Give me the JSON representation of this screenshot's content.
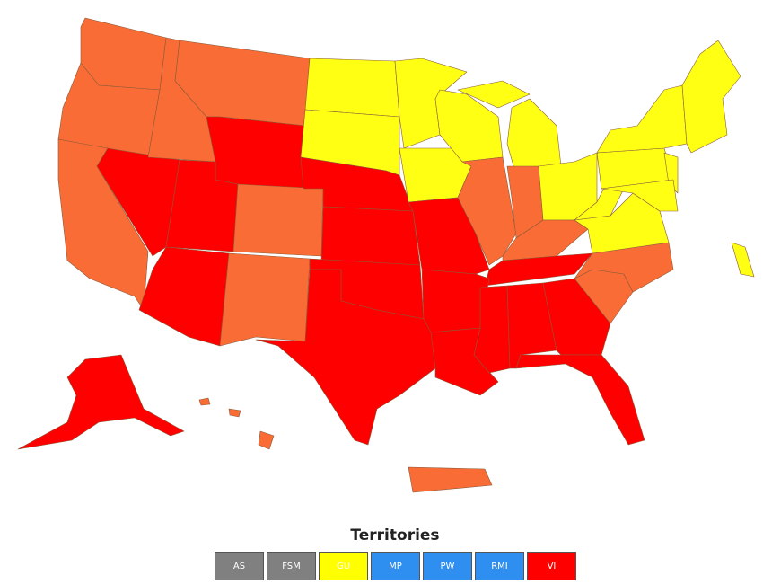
{
  "legend": {
    "title": "Territories",
    "items": [
      {
        "label": "AS",
        "color": "#808080"
      },
      {
        "label": "FSM",
        "color": "#808080"
      },
      {
        "label": "GU",
        "color": "#ffff00"
      },
      {
        "label": "MP",
        "color": "#2f8ff0"
      },
      {
        "label": "PW",
        "color": "#2f8ff0"
      },
      {
        "label": "RMI",
        "color": "#2f8ff0"
      },
      {
        "label": "VI",
        "color": "#ff0000"
      }
    ]
  }
}
